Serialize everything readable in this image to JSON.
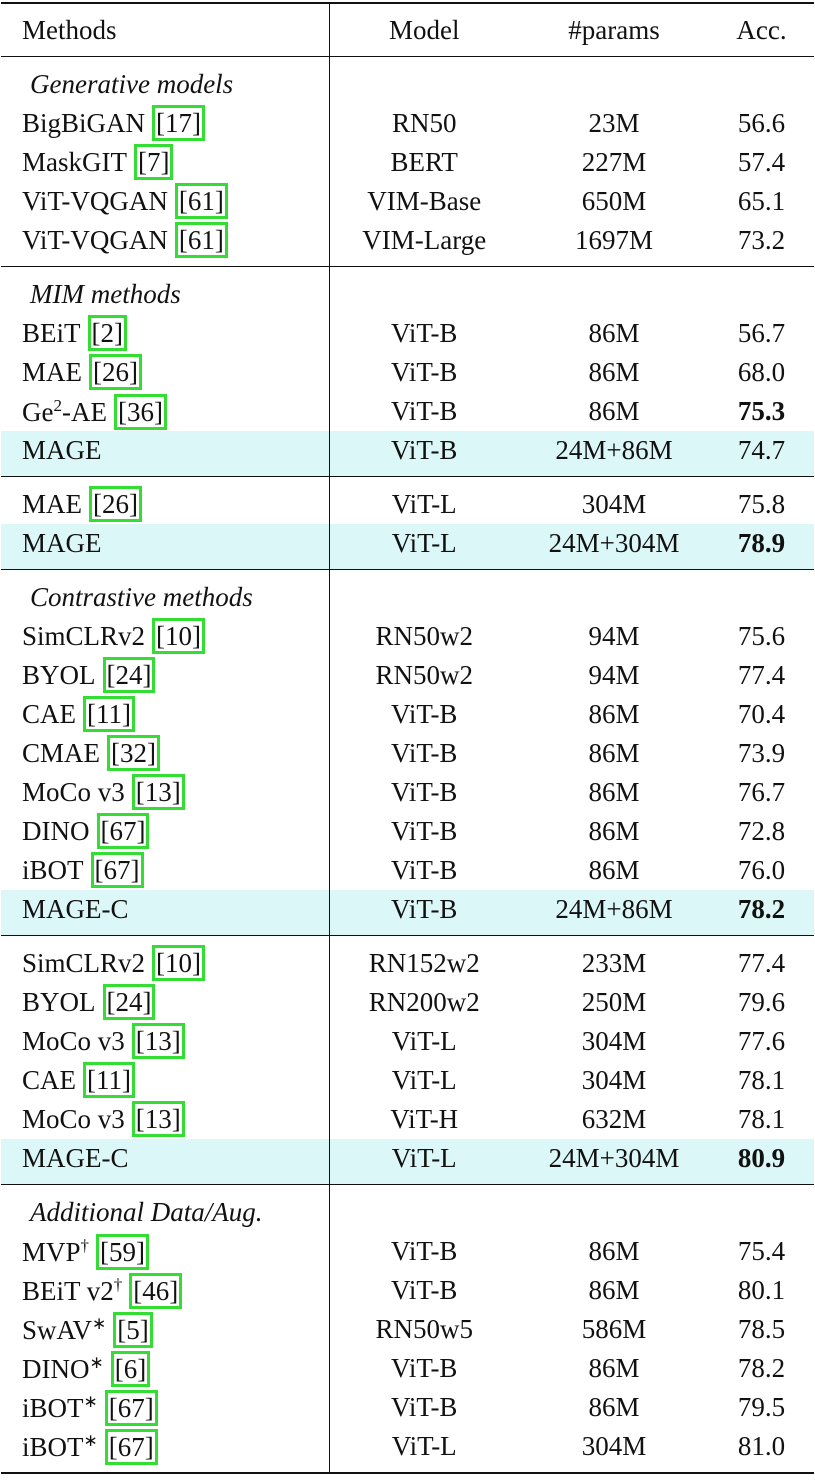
{
  "table": {
    "headers": [
      "Methods",
      "Model",
      "#params",
      "Acc."
    ],
    "groups": [
      {
        "title": "Generative models",
        "rows": [
          {
            "method": "BigBiGAN",
            "ref": "[17]",
            "model": "RN50",
            "params": "23M",
            "acc": "56.6"
          },
          {
            "method": "MaskGIT",
            "ref": "[7]",
            "model": "BERT",
            "params": "227M",
            "acc": "57.4"
          },
          {
            "method": "ViT-VQGAN",
            "ref": "[61]",
            "model": "VIM-Base",
            "params": "650M",
            "acc": "65.1"
          },
          {
            "method": "ViT-VQGAN",
            "ref": "[61]",
            "model": "VIM-Large",
            "params": "1697M",
            "acc": "73.2"
          }
        ]
      },
      {
        "title": "MIM methods",
        "rows": [
          {
            "method": "BEiT",
            "ref": "[2]",
            "model": "ViT-B",
            "params": "86M",
            "acc": "56.7"
          },
          {
            "method": "MAE",
            "ref": "[26]",
            "model": "ViT-B",
            "params": "86M",
            "acc": "68.0"
          },
          {
            "method": "Ge",
            "sup": "2",
            "suffix": "-AE",
            "ref": "[36]",
            "model": "ViT-B",
            "params": "86M",
            "acc": "75.3",
            "bold": true
          },
          {
            "method": "MAGE",
            "model": "ViT-B",
            "params": "24M+86M",
            "acc": "74.7",
            "highlight": true
          }
        ]
      },
      {
        "rows": [
          {
            "method": "MAE",
            "ref": "[26]",
            "model": "ViT-L",
            "params": "304M",
            "acc": "75.8"
          },
          {
            "method": "MAGE",
            "model": "ViT-L",
            "params": "24M+304M",
            "acc": "78.9",
            "bold": true,
            "highlight": true
          }
        ]
      },
      {
        "title": "Contrastive methods",
        "rows": [
          {
            "method": "SimCLRv2",
            "ref": "[10]",
            "model": "RN50w2",
            "params": "94M",
            "acc": "75.6"
          },
          {
            "method": "BYOL",
            "ref": "[24]",
            "model": "RN50w2",
            "params": "94M",
            "acc": "77.4"
          },
          {
            "method": "CAE",
            "ref": "[11]",
            "model": "ViT-B",
            "params": "86M",
            "acc": "70.4"
          },
          {
            "method": "CMAE",
            "ref": "[32]",
            "model": "ViT-B",
            "params": "86M",
            "acc": "73.9"
          },
          {
            "method": "MoCo v3",
            "ref": "[13]",
            "model": "ViT-B",
            "params": "86M",
            "acc": "76.7"
          },
          {
            "method": "DINO",
            "ref": "[67]",
            "model": "ViT-B",
            "params": "86M",
            "acc": "72.8"
          },
          {
            "method": "iBOT",
            "ref": "[67]",
            "model": "ViT-B",
            "params": "86M",
            "acc": "76.0"
          },
          {
            "method": "MAGE-C",
            "model": "ViT-B",
            "params": "24M+86M",
            "acc": "78.2",
            "bold": true,
            "highlight": true
          }
        ]
      },
      {
        "rows": [
          {
            "method": "SimCLRv2",
            "ref": "[10]",
            "model": "RN152w2",
            "params": "233M",
            "acc": "77.4"
          },
          {
            "method": "BYOL",
            "ref": "[24]",
            "model": "RN200w2",
            "params": "250M",
            "acc": "79.6"
          },
          {
            "method": "MoCo v3",
            "ref": "[13]",
            "model": "ViT-L",
            "params": "304M",
            "acc": "77.6"
          },
          {
            "method": "CAE",
            "ref": "[11]",
            "model": "ViT-L",
            "params": "304M",
            "acc": "78.1"
          },
          {
            "method": "MoCo v3",
            "ref": "[13]",
            "model": "ViT-H",
            "params": "632M",
            "acc": "78.1"
          },
          {
            "method": "MAGE-C",
            "model": "ViT-L",
            "params": "24M+304M",
            "acc": "80.9",
            "bold": true,
            "highlight": true
          }
        ]
      },
      {
        "title": "Additional Data/Aug.",
        "rows": [
          {
            "method": "MVP",
            "sup": "†",
            "ref": "[59]",
            "model": "ViT-B",
            "params": "86M",
            "acc": "75.4"
          },
          {
            "method": "BEiT v2",
            "sup": "†",
            "ref": "[46]",
            "model": "ViT-B",
            "params": "86M",
            "acc": "80.1"
          },
          {
            "method": "SwAV",
            "sup": "∗",
            "ref": "[5]",
            "model": "RN50w5",
            "params": "586M",
            "acc": "78.5"
          },
          {
            "method": "DINO",
            "sup": "∗",
            "ref": "[6]",
            "model": "ViT-B",
            "params": "86M",
            "acc": "78.2"
          },
          {
            "method": "iBOT",
            "sup": "∗",
            "ref": "[67]",
            "model": "ViT-B",
            "params": "86M",
            "acc": "79.5"
          },
          {
            "method": "iBOT",
            "sup": "∗",
            "ref": "[67]",
            "model": "ViT-L",
            "params": "304M",
            "acc": "81.0"
          }
        ]
      }
    ]
  }
}
